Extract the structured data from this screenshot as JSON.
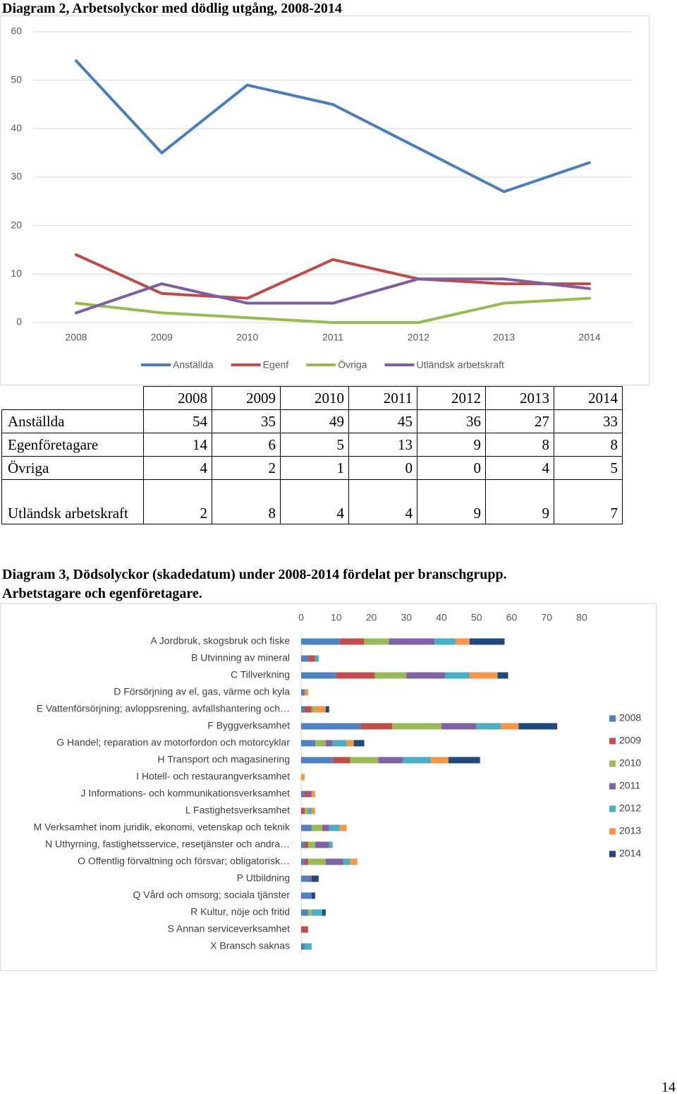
{
  "chart_data": [
    {
      "type": "line",
      "title": "Diagram 2, Arbetsolyckor med dödlig utgång, 2008-2014",
      "categories": [
        "2008",
        "2009",
        "2010",
        "2011",
        "2012",
        "2013",
        "2014"
      ],
      "series": [
        {
          "name": "Anställda",
          "color": "#4a7ebb",
          "values": [
            54,
            35,
            49,
            45,
            36,
            27,
            33
          ]
        },
        {
          "name": "Egenf",
          "color": "#be4b48",
          "values": [
            14,
            6,
            5,
            13,
            9,
            8,
            8
          ]
        },
        {
          "name": "Övriga",
          "color": "#98b954",
          "values": [
            4,
            2,
            1,
            0,
            0,
            4,
            5
          ]
        },
        {
          "name": "Utländsk arbetskraft",
          "color": "#7d5fa0",
          "values": [
            2,
            8,
            4,
            4,
            9,
            9,
            7
          ]
        }
      ],
      "ylim": [
        0,
        60
      ],
      "yticks": [
        0,
        10,
        20,
        30,
        40,
        50,
        60
      ],
      "grid": true,
      "legend": "bottom"
    },
    {
      "type": "stacked-bar-horizontal",
      "title": "Diagram 3, Dödsolyckor (skadedatum) under 2008-2014 fördelat per branschgrupp. Arbetstagare och egenföretagare.",
      "categories": [
        "A Jordbruk, skogsbruk och fiske",
        "B Utvinning av mineral",
        "C Tillverkning",
        "D Försörjning av el, gas, värme och kyla",
        "E Vattenförsörjning; avloppsrening, avfallshantering och…",
        "F Byggverksamhet",
        "G Handel; reparation av motorfordon och motorcyklar",
        "H Transport och magasinering",
        "I Hotell- och restaurangverksamhet",
        "J Informations- och kommunikationsverksamhet",
        "L Fastighetsverksamhet",
        "M Verksamhet inom juridik, ekonomi, vetenskap och teknik",
        "N Uthyrning, fastighetsservice, resetjänster och andra…",
        "O Offentlig förvaltning och försvar; obligatorisk…",
        "P Utbildning",
        "Q Vård och omsorg; sociala tjänster",
        "R Kultur, nöje och fritid",
        "S Annan serviceverksamhet",
        "X Bransch saknas"
      ],
      "series": [
        {
          "name": "2008",
          "color": "#4f81bd",
          "values": [
            11,
            2,
            10,
            1,
            1,
            17,
            4,
            9,
            0,
            1,
            0,
            3,
            1,
            1,
            2,
            3,
            2,
            0,
            1
          ]
        },
        {
          "name": "2009",
          "color": "#c0504d",
          "values": [
            7,
            2,
            11,
            0,
            2,
            9,
            0,
            5,
            0,
            1,
            1,
            0,
            1,
            1,
            0,
            0,
            0,
            2,
            0
          ]
        },
        {
          "name": "2010",
          "color": "#9bbb59",
          "values": [
            7,
            0,
            9,
            0,
            1,
            14,
            3,
            8,
            0,
            0,
            1,
            3,
            2,
            5,
            0,
            0,
            1,
            0,
            0
          ]
        },
        {
          "name": "2011",
          "color": "#8064a2",
          "values": [
            13,
            0,
            11,
            0,
            0,
            10,
            2,
            7,
            0,
            1,
            0,
            2,
            4,
            5,
            1,
            0,
            0,
            0,
            0
          ]
        },
        {
          "name": "2012",
          "color": "#4bacc6",
          "values": [
            6,
            1,
            7,
            0,
            0,
            7,
            4,
            8,
            0,
            0,
            1,
            3,
            1,
            2,
            0,
            0,
            3,
            0,
            2
          ]
        },
        {
          "name": "2013",
          "color": "#f79646",
          "values": [
            4,
            0,
            8,
            1,
            3,
            5,
            2,
            5,
            1,
            1,
            1,
            2,
            0,
            2,
            0,
            0,
            0,
            0,
            0
          ]
        },
        {
          "name": "2014",
          "color": "#1f497d",
          "values": [
            10,
            0,
            3,
            0,
            1,
            11,
            3,
            9,
            0,
            0,
            0,
            0,
            0,
            0,
            2,
            1,
            1,
            0,
            0
          ]
        }
      ],
      "xlim": [
        0,
        80
      ],
      "xticks": [
        0,
        10,
        20,
        30,
        40,
        50,
        60,
        70,
        80
      ],
      "legend": "right"
    }
  ],
  "table": {
    "header": [
      "2008",
      "2009",
      "2010",
      "2011",
      "2012",
      "2013",
      "2014"
    ],
    "rows": [
      [
        "Anställda",
        "54",
        "35",
        "49",
        "45",
        "36",
        "27",
        "33"
      ],
      [
        "Egenföretagare",
        "14",
        "6",
        "5",
        "13",
        "9",
        "8",
        "8"
      ],
      [
        "Övriga",
        "4",
        "2",
        "1",
        "0",
        "0",
        "4",
        "5"
      ],
      [
        "Utländsk arbetskraft",
        "2",
        "8",
        "4",
        "4",
        "9",
        "9",
        "7"
      ]
    ]
  },
  "page_number": "14"
}
